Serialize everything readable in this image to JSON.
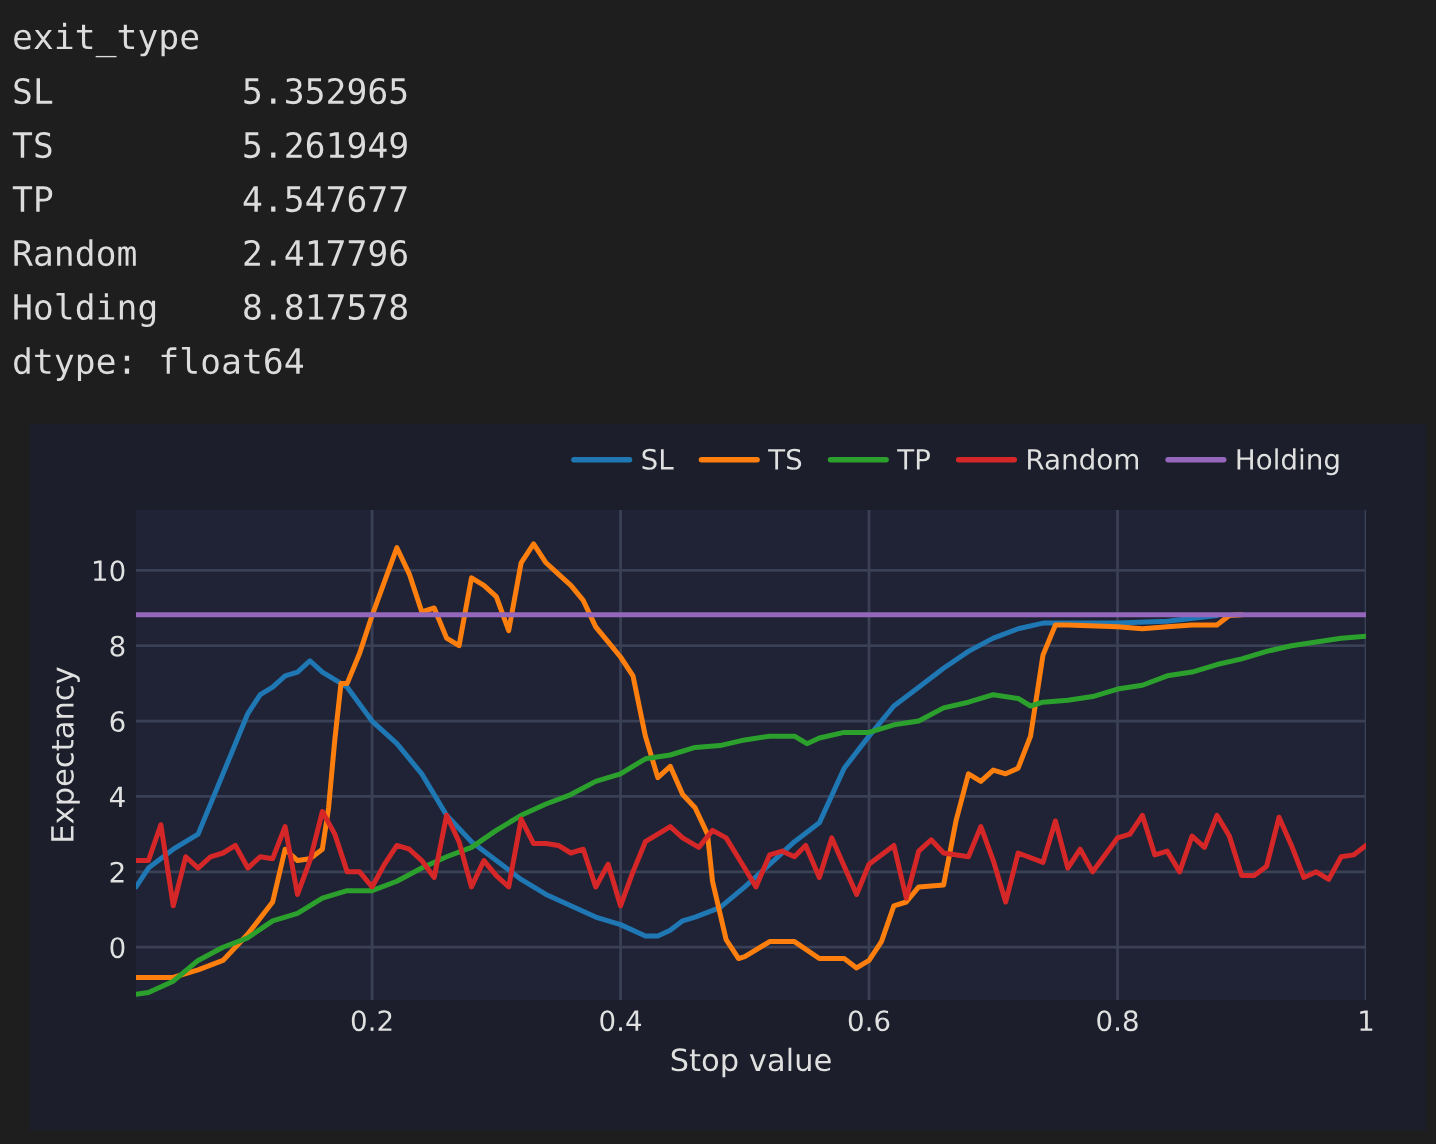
{
  "chart_data": {
    "type": "line",
    "xlabel": "Stop value",
    "ylabel": "Expectancy",
    "annotations": [
      "exit_type",
      "SL         5.352965",
      "TS         5.261949",
      "TP         4.547677",
      "Random     2.417796",
      "Holding    8.817578",
      "dtype: float64"
    ],
    "xlim": [
      0.01,
      1
    ],
    "ylim": [
      -1.4,
      11.6
    ],
    "xticks": [
      0.2,
      0.4,
      0.6,
      0.8,
      {
        "value": 1,
        "label": "1"
      }
    ],
    "yticks": [
      0,
      2,
      4,
      6,
      8,
      10
    ],
    "grid": true,
    "legend": "top right",
    "series": [
      {
        "name": "SL",
        "color": "#1f77b4",
        "x": [
          0.01,
          0.02,
          0.04,
          0.06,
          0.08,
          0.1,
          0.11,
          0.12,
          0.13,
          0.14,
          0.15,
          0.16,
          0.18,
          0.2,
          0.22,
          0.24,
          0.26,
          0.28,
          0.3,
          0.32,
          0.34,
          0.36,
          0.38,
          0.4,
          0.42,
          0.43,
          0.44,
          0.45,
          0.46,
          0.48,
          0.5,
          0.52,
          0.54,
          0.56,
          0.58,
          0.6,
          0.62,
          0.64,
          0.66,
          0.68,
          0.7,
          0.72,
          0.74,
          0.76,
          0.8,
          0.84,
          0.88
        ],
        "values": [
          1.6,
          2.1,
          2.6,
          3.0,
          4.6,
          6.2,
          6.7,
          6.9,
          7.2,
          7.3,
          7.6,
          7.3,
          6.9,
          6.0,
          5.4,
          4.6,
          3.5,
          2.8,
          2.3,
          1.8,
          1.4,
          1.1,
          0.8,
          0.6,
          0.3,
          0.3,
          0.45,
          0.7,
          0.8,
          1.05,
          1.6,
          2.2,
          2.8,
          3.3,
          4.75,
          5.6,
          6.4,
          6.9,
          7.4,
          7.85,
          8.2,
          8.45,
          8.6,
          8.6,
          8.6,
          8.65,
          8.8
        ]
      },
      {
        "name": "TS",
        "color": "#ff7f0e",
        "x": [
          0.01,
          0.04,
          0.06,
          0.08,
          0.1,
          0.12,
          0.13,
          0.14,
          0.15,
          0.16,
          0.165,
          0.17,
          0.175,
          0.18,
          0.19,
          0.2,
          0.21,
          0.22,
          0.23,
          0.24,
          0.25,
          0.26,
          0.27,
          0.28,
          0.29,
          0.3,
          0.31,
          0.32,
          0.33,
          0.34,
          0.35,
          0.36,
          0.37,
          0.38,
          0.39,
          0.4,
          0.41,
          0.42,
          0.43,
          0.44,
          0.45,
          0.46,
          0.47,
          0.474,
          0.485,
          0.495,
          0.5,
          0.52,
          0.54,
          0.56,
          0.58,
          0.59,
          0.6,
          0.61,
          0.62,
          0.63,
          0.64,
          0.66,
          0.67,
          0.68,
          0.69,
          0.7,
          0.71,
          0.72,
          0.73,
          0.74,
          0.75,
          0.76,
          0.8,
          0.82,
          0.84,
          0.86,
          0.88,
          0.89,
          0.9
        ],
        "values": [
          -0.8,
          -0.8,
          -0.6,
          -0.35,
          0.35,
          1.2,
          2.6,
          2.3,
          2.35,
          2.6,
          3.7,
          5.5,
          7.0,
          7.0,
          7.8,
          8.8,
          9.7,
          10.6,
          9.9,
          8.9,
          9.0,
          8.2,
          8.0,
          9.8,
          9.6,
          9.3,
          8.4,
          10.2,
          10.7,
          10.2,
          9.9,
          9.6,
          9.2,
          8.5,
          8.1,
          7.7,
          7.2,
          5.6,
          4.5,
          4.8,
          4.05,
          3.7,
          3.0,
          1.75,
          0.2,
          -0.3,
          -0.25,
          0.15,
          0.15,
          -0.3,
          -0.3,
          -0.55,
          -0.35,
          0.15,
          1.1,
          1.2,
          1.6,
          1.65,
          3.35,
          4.6,
          4.4,
          4.7,
          4.6,
          4.75,
          5.6,
          7.75,
          8.55,
          8.55,
          8.5,
          8.45,
          8.5,
          8.55,
          8.55,
          8.8,
          8.82
        ]
      },
      {
        "name": "TP",
        "color": "#2ca02c",
        "x": [
          0.01,
          0.02,
          0.04,
          0.06,
          0.08,
          0.1,
          0.12,
          0.14,
          0.16,
          0.18,
          0.2,
          0.22,
          0.24,
          0.26,
          0.28,
          0.3,
          0.32,
          0.34,
          0.36,
          0.38,
          0.4,
          0.42,
          0.44,
          0.46,
          0.48,
          0.5,
          0.52,
          0.54,
          0.55,
          0.56,
          0.58,
          0.6,
          0.62,
          0.64,
          0.66,
          0.68,
          0.7,
          0.72,
          0.73,
          0.74,
          0.76,
          0.78,
          0.8,
          0.82,
          0.84,
          0.86,
          0.88,
          0.9,
          0.92,
          0.94,
          0.96,
          0.98,
          1.0
        ],
        "values": [
          -1.25,
          -1.2,
          -0.9,
          -0.35,
          0.0,
          0.25,
          0.7,
          0.9,
          1.3,
          1.5,
          1.5,
          1.75,
          2.1,
          2.4,
          2.65,
          3.1,
          3.5,
          3.8,
          4.05,
          4.4,
          4.6,
          5.0,
          5.1,
          5.3,
          5.35,
          5.5,
          5.6,
          5.6,
          5.4,
          5.55,
          5.7,
          5.7,
          5.9,
          6.0,
          6.35,
          6.5,
          6.7,
          6.6,
          6.4,
          6.5,
          6.55,
          6.65,
          6.85,
          6.95,
          7.2,
          7.3,
          7.5,
          7.65,
          7.85,
          8.0,
          8.1,
          8.2,
          8.25
        ]
      },
      {
        "name": "Random",
        "color": "#d62728",
        "x": [
          0.01,
          0.02,
          0.03,
          0.04,
          0.05,
          0.06,
          0.07,
          0.08,
          0.09,
          0.1,
          0.11,
          0.12,
          0.13,
          0.14,
          0.15,
          0.16,
          0.17,
          0.18,
          0.19,
          0.2,
          0.21,
          0.22,
          0.23,
          0.24,
          0.25,
          0.26,
          0.27,
          0.28,
          0.29,
          0.3,
          0.31,
          0.32,
          0.33,
          0.34,
          0.35,
          0.36,
          0.37,
          0.38,
          0.39,
          0.4,
          0.41,
          0.42,
          0.43,
          0.44,
          0.45,
          0.463,
          0.474,
          0.485,
          0.498,
          0.509,
          0.52,
          0.53,
          0.54,
          0.549,
          0.56,
          0.57,
          0.59,
          0.6,
          0.62,
          0.63,
          0.64,
          0.65,
          0.66,
          0.68,
          0.69,
          0.7,
          0.71,
          0.72,
          0.74,
          0.75,
          0.76,
          0.77,
          0.78,
          0.8,
          0.81,
          0.82,
          0.83,
          0.84,
          0.85,
          0.86,
          0.87,
          0.88,
          0.89,
          0.9,
          0.91,
          0.92,
          0.93,
          0.94,
          0.95,
          0.96,
          0.97,
          0.98,
          0.99,
          1.0
        ],
        "values": [
          2.3,
          2.3,
          3.25,
          1.1,
          2.4,
          2.1,
          2.4,
          2.5,
          2.7,
          2.1,
          2.4,
          2.35,
          3.2,
          1.4,
          2.3,
          3.6,
          3.0,
          2.0,
          2.0,
          1.6,
          2.2,
          2.7,
          2.6,
          2.3,
          1.85,
          3.5,
          2.8,
          1.6,
          2.3,
          1.9,
          1.6,
          3.4,
          2.75,
          2.75,
          2.7,
          2.5,
          2.6,
          1.6,
          2.2,
          1.1,
          2.0,
          2.8,
          3.0,
          3.2,
          2.9,
          2.65,
          3.1,
          2.9,
          2.2,
          1.6,
          2.45,
          2.55,
          2.4,
          2.7,
          1.85,
          2.9,
          1.4,
          2.2,
          2.7,
          1.3,
          2.55,
          2.85,
          2.5,
          2.4,
          3.2,
          2.3,
          1.2,
          2.5,
          2.25,
          3.35,
          2.1,
          2.6,
          2.0,
          2.9,
          3.0,
          3.5,
          2.45,
          2.55,
          2.0,
          2.95,
          2.65,
          3.5,
          2.95,
          1.9,
          1.9,
          2.15,
          3.45,
          2.7,
          1.85,
          2.0,
          1.8,
          2.4,
          2.45,
          2.7
        ]
      },
      {
        "name": "Holding",
        "color": "#9467bd",
        "x": [
          0.01,
          1.0
        ],
        "values": [
          8.82,
          8.82
        ]
      }
    ]
  }
}
